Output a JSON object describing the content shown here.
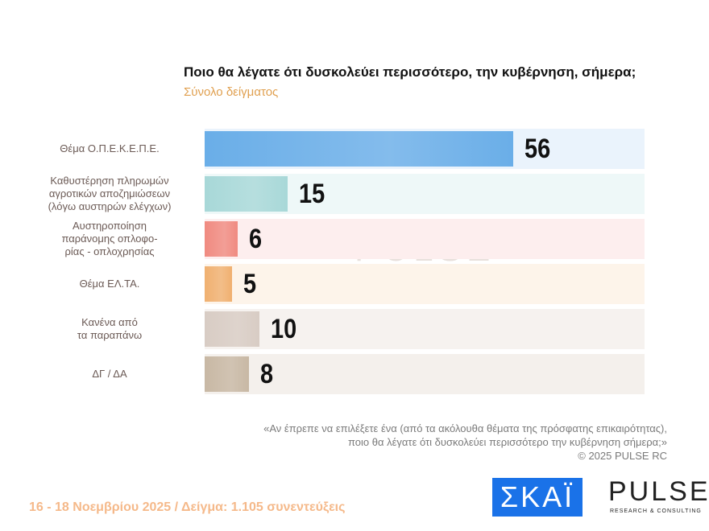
{
  "chart_data": {
    "type": "bar",
    "orientation": "horizontal",
    "title": "Ποιο θα λέγατε ότι δυσκολεύει περισσότερο, την κυβέρνηση, σήμερα;",
    "subtitle": "Σύνολο δείγματος",
    "categories": [
      [
        "Θέμα Ο.Π.Ε.Κ.Ε.Π.Ε."
      ],
      [
        "Καθυστέρηση πληρωμών",
        "αγροτικών αποζημιώσεων",
        "(λόγω αυστηρών ελέγχων)"
      ],
      [
        "Αυστηροποίηση",
        "παράνομης οπλοφο-",
        "ρίας - οπλοχρησίας"
      ],
      [
        "Θέμα ΕΛ.ΤΑ."
      ],
      [
        "Κανένα από",
        "τα παραπάνω"
      ],
      [
        "ΔΓ / ΔΑ"
      ]
    ],
    "values": [
      56,
      15,
      6,
      5,
      10,
      8
    ],
    "colors": [
      "#6aaee8",
      "#a8d8d8",
      "#f08a80",
      "#f0b070",
      "#d8ccc4",
      "#c8b8a4"
    ],
    "row_backgrounds": [
      "#eaf3fc",
      "#eef8f8",
      "#fdeeee",
      "#fdf4ea",
      "#f6f2ef",
      "#f4f0ec"
    ],
    "xlim": [
      0,
      80
    ],
    "grid": false
  },
  "watermark": {
    "brand": "PULSE",
    "tagline": "RESEARCH & CONSULTING"
  },
  "note": {
    "line1": "«Αν έπρεπε να επιλέξετε ένα (από τα ακόλουθα θέματα της πρόσφατης επικαιρότητας),",
    "line2": "ποιο θα λέγατε ότι δυσκολεύει περισσότερο την κυβέρνηση σήμερα;»",
    "copyright": "©  2025  PULSE RC"
  },
  "footer": "16 - 18 Νοεμβρίου 2025  /  Δείγμα:  1.105 συνεντεύξεις",
  "logos": {
    "skai": "ΣΚΑΪ",
    "pulse": "PULSE",
    "pulse_tagline": "RESEARCH & CONSULTING"
  }
}
